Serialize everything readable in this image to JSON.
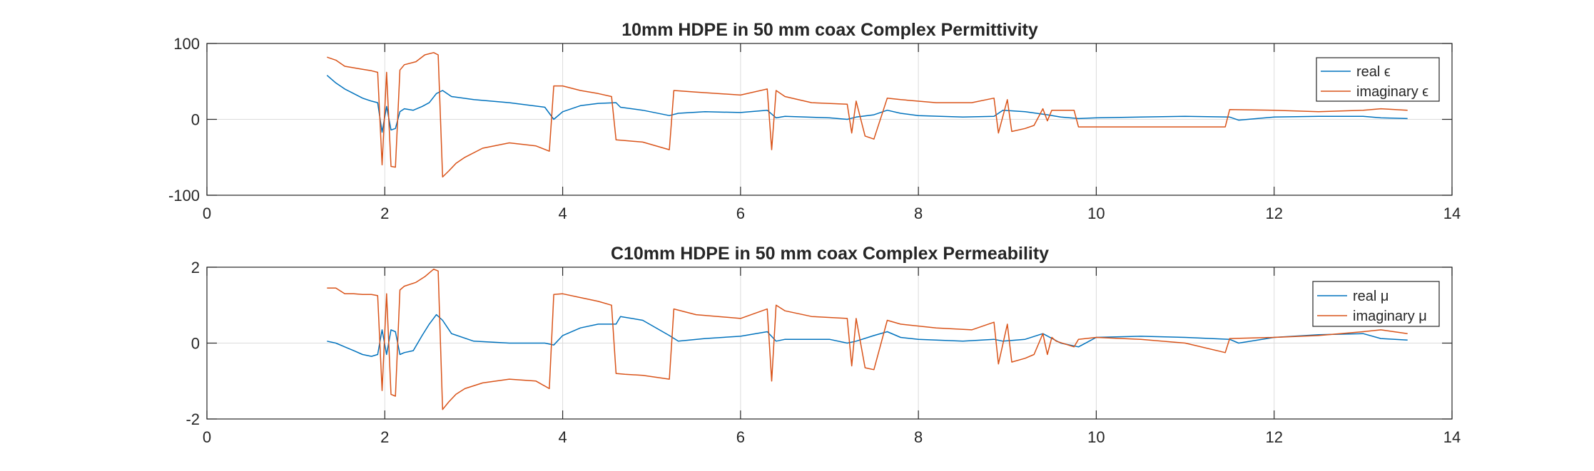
{
  "chart_data": [
    {
      "type": "line",
      "title": "10mm HDPE in 50 mm coax Complex Permittivity",
      "xlabel": "",
      "ylabel": "",
      "xlim": [
        0,
        14
      ],
      "ylim": [
        -100,
        100
      ],
      "xticks": [
        "0",
        "2",
        "4",
        "6",
        "8",
        "10",
        "12",
        "14"
      ],
      "yticks": [
        "-100",
        "0",
        "100"
      ],
      "grid": true,
      "legend_position": "top-right",
      "series": [
        {
          "name": "real ϵ",
          "color": "#0072BD",
          "x": [
            1.35,
            1.45,
            1.55,
            1.65,
            1.75,
            1.85,
            1.92,
            1.97,
            2.02,
            2.07,
            2.12,
            2.17,
            2.22,
            2.32,
            2.42,
            2.5,
            2.58,
            2.65,
            2.75,
            3.0,
            3.4,
            3.8,
            3.9,
            4.0,
            4.2,
            4.4,
            4.6,
            4.65,
            4.9,
            5.2,
            5.3,
            5.6,
            6.0,
            6.3,
            6.4,
            6.5,
            7.0,
            7.2,
            7.3,
            7.5,
            7.65,
            7.8,
            8.0,
            8.5,
            8.85,
            8.95,
            9.2,
            9.45,
            9.6,
            9.8,
            10.0,
            10.5,
            11.0,
            11.5,
            11.6,
            12.0,
            12.5,
            13.0,
            13.2,
            13.5
          ],
          "y": [
            58,
            48,
            40,
            34,
            28,
            24,
            22,
            -17,
            17,
            -14,
            -12,
            10,
            14,
            12,
            17,
            22,
            34,
            38,
            30,
            26,
            22,
            16,
            0,
            10,
            18,
            21,
            22,
            16,
            12,
            5,
            8,
            10,
            9,
            12,
            2,
            4,
            2,
            0,
            3,
            6,
            12,
            8,
            5,
            3,
            4,
            12,
            10,
            6,
            3,
            1,
            2,
            3,
            4,
            3,
            -1,
            3,
            4,
            4,
            2,
            1
          ]
        },
        {
          "name": "imaginary ϵ",
          "color": "#D95319",
          "x": [
            1.35,
            1.45,
            1.55,
            1.65,
            1.75,
            1.85,
            1.92,
            1.97,
            2.02,
            2.07,
            2.12,
            2.17,
            2.22,
            2.35,
            2.45,
            2.55,
            2.6,
            2.65,
            2.72,
            2.8,
            2.9,
            3.1,
            3.4,
            3.7,
            3.85,
            3.9,
            4.0,
            4.2,
            4.4,
            4.55,
            4.6,
            4.7,
            4.9,
            5.2,
            5.25,
            5.5,
            6.0,
            6.3,
            6.35,
            6.4,
            6.5,
            6.8,
            7.2,
            7.25,
            7.3,
            7.4,
            7.5,
            7.65,
            7.8,
            8.2,
            8.6,
            8.85,
            8.9,
            9.0,
            9.05,
            9.2,
            9.3,
            9.4,
            9.45,
            9.5,
            9.55,
            9.75,
            9.8,
            10.0,
            10.5,
            11.0,
            11.45,
            11.5,
            12.0,
            12.5,
            13.0,
            13.2,
            13.5
          ],
          "y": [
            82,
            78,
            70,
            68,
            66,
            64,
            62,
            -60,
            62,
            -62,
            -63,
            65,
            72,
            76,
            85,
            88,
            85,
            -76,
            -68,
            -58,
            -50,
            -38,
            -31,
            -35,
            -42,
            44,
            44,
            38,
            34,
            30,
            -27,
            -28,
            -30,
            -40,
            38,
            36,
            32,
            40,
            -40,
            38,
            30,
            22,
            20,
            -18,
            24,
            -22,
            -26,
            28,
            26,
            22,
            22,
            28,
            -18,
            26,
            -16,
            -12,
            -8,
            14,
            -2,
            12,
            12,
            12,
            -10,
            -10,
            -10,
            -10,
            -10,
            13,
            12,
            10,
            12,
            14,
            12
          ]
        }
      ]
    },
    {
      "type": "line",
      "title": "C10mm HDPE in 50 mm coax Complex Permeability",
      "xlabel": "",
      "ylabel": "",
      "xlim": [
        0,
        14
      ],
      "ylim": [
        -2,
        2
      ],
      "xticks": [
        "0",
        "2",
        "4",
        "6",
        "8",
        "10",
        "12",
        "14"
      ],
      "yticks": [
        "-2",
        "0",
        "2"
      ],
      "grid": true,
      "legend_position": "top-right",
      "series": [
        {
          "name": "real μ",
          "color": "#0072BD",
          "x": [
            1.35,
            1.45,
            1.55,
            1.65,
            1.75,
            1.85,
            1.92,
            1.97,
            2.02,
            2.07,
            2.12,
            2.17,
            2.22,
            2.32,
            2.42,
            2.5,
            2.58,
            2.65,
            2.75,
            3.0,
            3.4,
            3.8,
            3.9,
            4.0,
            4.2,
            4.4,
            4.6,
            4.65,
            4.9,
            5.2,
            5.3,
            5.6,
            6.0,
            6.3,
            6.4,
            6.5,
            7.0,
            7.2,
            7.3,
            7.5,
            7.65,
            7.8,
            8.0,
            8.5,
            8.85,
            8.95,
            9.2,
            9.4,
            9.6,
            9.8,
            10.0,
            10.5,
            11.0,
            11.5,
            11.6,
            12.0,
            12.5,
            13.0,
            13.2,
            13.5
          ],
          "y": [
            0.05,
            0.0,
            -0.1,
            -0.2,
            -0.3,
            -0.35,
            -0.3,
            0.35,
            -0.3,
            0.35,
            0.3,
            -0.3,
            -0.25,
            -0.2,
            0.2,
            0.5,
            0.75,
            0.6,
            0.25,
            0.05,
            0.0,
            0.0,
            -0.05,
            0.2,
            0.4,
            0.5,
            0.5,
            0.7,
            0.6,
            0.2,
            0.05,
            0.12,
            0.18,
            0.3,
            0.05,
            0.1,
            0.1,
            0.0,
            0.05,
            0.2,
            0.3,
            0.15,
            0.1,
            0.05,
            0.1,
            0.05,
            0.1,
            0.25,
            0.0,
            -0.1,
            0.15,
            0.18,
            0.15,
            0.1,
            0.0,
            0.15,
            0.22,
            0.25,
            0.12,
            0.08
          ]
        },
        {
          "name": "imaginary μ",
          "color": "#D95319",
          "x": [
            1.35,
            1.45,
            1.55,
            1.65,
            1.75,
            1.85,
            1.92,
            1.97,
            2.02,
            2.07,
            2.12,
            2.17,
            2.22,
            2.35,
            2.45,
            2.55,
            2.6,
            2.65,
            2.72,
            2.8,
            2.9,
            3.1,
            3.4,
            3.7,
            3.85,
            3.9,
            4.0,
            4.2,
            4.4,
            4.55,
            4.6,
            4.7,
            4.9,
            5.2,
            5.25,
            5.5,
            6.0,
            6.3,
            6.35,
            6.4,
            6.5,
            6.8,
            7.2,
            7.25,
            7.3,
            7.4,
            7.5,
            7.65,
            7.8,
            8.2,
            8.6,
            8.85,
            8.9,
            9.0,
            9.05,
            9.2,
            9.3,
            9.4,
            9.45,
            9.5,
            9.55,
            9.75,
            9.8,
            10.0,
            10.5,
            11.0,
            11.45,
            11.5,
            12.0,
            12.5,
            13.0,
            13.2,
            13.5
          ],
          "y": [
            1.45,
            1.45,
            1.3,
            1.3,
            1.28,
            1.28,
            1.25,
            -1.25,
            1.3,
            -1.35,
            -1.4,
            1.4,
            1.5,
            1.6,
            1.75,
            1.95,
            1.9,
            -1.75,
            -1.55,
            -1.35,
            -1.2,
            -1.05,
            -0.95,
            -1.0,
            -1.2,
            1.28,
            1.3,
            1.2,
            1.1,
            1.0,
            -0.8,
            -0.82,
            -0.85,
            -0.95,
            0.9,
            0.75,
            0.65,
            0.9,
            -1.0,
            1.0,
            0.85,
            0.7,
            0.65,
            -0.6,
            0.65,
            -0.65,
            -0.7,
            0.6,
            0.5,
            0.4,
            0.35,
            0.55,
            -0.55,
            0.5,
            -0.5,
            -0.4,
            -0.3,
            0.25,
            -0.3,
            0.15,
            0.05,
            -0.1,
            0.1,
            0.15,
            0.1,
            0.0,
            -0.25,
            0.12,
            0.15,
            0.2,
            0.3,
            0.35,
            0.25
          ]
        }
      ]
    }
  ]
}
